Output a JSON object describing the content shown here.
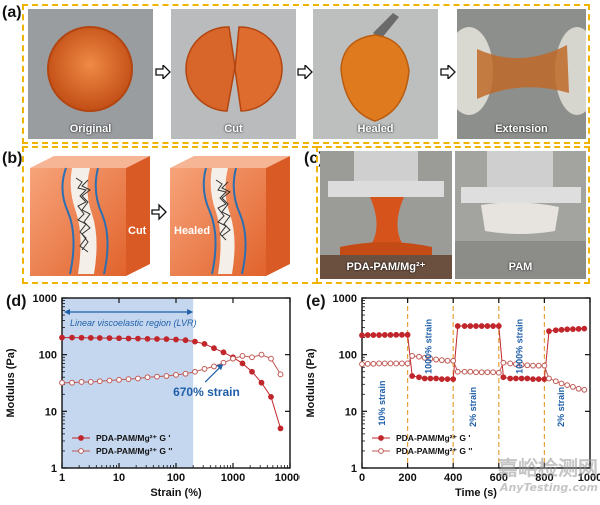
{
  "panels": {
    "a": "(a)",
    "b": "(b)",
    "c": "(c)",
    "d": "(d)",
    "e": "(e)"
  },
  "panel_a": {
    "captions": [
      "Original",
      "Cut",
      "Healed",
      "Extension"
    ]
  },
  "panel_b": {
    "cut_label": "Cut",
    "healed_label": "Healed"
  },
  "panel_c": {
    "left_label": "PDA-PAM/Mg²⁺",
    "right_label": "PAM"
  },
  "watermark": {
    "cn": "嘉峪检测网",
    "en": "AnyTesting.com"
  },
  "colors": {
    "orange": "#e8743b",
    "dash": "#f0b400",
    "lvr": "#c5d7ef",
    "series_dark": "#c0262b",
    "annot": "#1f5fa8",
    "divider": "#e8a33a"
  },
  "chart_data": [
    {
      "type": "line",
      "xscale": "log",
      "yscale": "log",
      "xlim": [
        1,
        10000
      ],
      "ylim": [
        1,
        1000
      ],
      "xlabel": "Strain (%)",
      "ylabel": "Modulus (Pa)",
      "xticks": [
        "1",
        "10",
        "100",
        "1000",
        "10000"
      ],
      "yticks": [
        "1",
        "10",
        "100",
        "1000"
      ],
      "region": {
        "label": "Linear viscoelastic region (LVR)",
        "x_range": [
          1,
          200
        ]
      },
      "annotation": {
        "text": "670% strain",
        "x": 670
      },
      "legend": [
        "PDA-PAM/Mg²⁺ G '",
        "PDA-PAM/Mg²⁺ G ''"
      ],
      "series": [
        {
          "name": "PDA-PAM/Mg²⁺ G '",
          "marker": "filled",
          "x": [
            1,
            1.5,
            2.2,
            3.2,
            4.6,
            6.8,
            10,
            14.7,
            21.5,
            31.6,
            46.4,
            68,
            100,
            147,
            215,
            316,
            464,
            681,
            1000,
            1468,
            2154,
            3162,
            4642,
            6813
          ],
          "y": [
            200,
            200,
            199,
            198,
            197,
            196,
            195,
            193,
            192,
            190,
            189,
            188,
            185,
            180,
            170,
            155,
            130,
            110,
            90,
            70,
            50,
            32,
            18,
            5
          ]
        },
        {
          "name": "PDA-PAM/Mg²⁺ G ''",
          "marker": "open",
          "x": [
            1,
            1.5,
            2.2,
            3.2,
            4.6,
            6.8,
            10,
            14.7,
            21.5,
            31.6,
            46.4,
            68,
            100,
            147,
            215,
            316,
            464,
            681,
            1000,
            1468,
            2154,
            3162,
            4642,
            6813
          ],
          "y": [
            32,
            32,
            33,
            33,
            34,
            35,
            36,
            37,
            38,
            40,
            41,
            42,
            44,
            46,
            50,
            56,
            62,
            72,
            85,
            95,
            90,
            100,
            85,
            45
          ]
        }
      ]
    },
    {
      "type": "line",
      "xscale": "linear",
      "yscale": "log",
      "xlim": [
        0,
        1000
      ],
      "ylim": [
        1,
        1000
      ],
      "xlabel": "Time (s)",
      "ylabel": "Modulus (Pa)",
      "xticks": [
        "0",
        "200",
        "400",
        "600",
        "800",
        "1000"
      ],
      "yticks": [
        "1",
        "10",
        "100",
        "1000"
      ],
      "dividers": [
        200,
        400,
        600,
        800
      ],
      "segment_labels": [
        {
          "text": "10% strain",
          "x": 100,
          "y": 14
        },
        {
          "text": "1000% strain",
          "x": 305,
          "y": 140
        },
        {
          "text": "2% strain",
          "x": 500,
          "y": 12
        },
        {
          "text": "1000% strain",
          "x": 705,
          "y": 140
        },
        {
          "text": "2% strain",
          "x": 885,
          "y": 12
        }
      ],
      "legend": [
        "PDA-PAM/Mg²⁺ G '",
        "PDA-PAM/Mg²⁺ G ''"
      ],
      "series": [
        {
          "name": "PDA-PAM/Mg²⁺ G '",
          "marker": "filled",
          "x": [
            0,
            25,
            50,
            75,
            100,
            125,
            150,
            175,
            200,
            220,
            250,
            275,
            300,
            325,
            350,
            375,
            400,
            420,
            450,
            475,
            500,
            525,
            550,
            575,
            600,
            620,
            650,
            675,
            700,
            725,
            750,
            775,
            800,
            820,
            850,
            875,
            900,
            925,
            950,
            975
          ],
          "y": [
            220,
            222,
            222,
            222,
            223,
            223,
            224,
            224,
            224,
            42,
            40,
            38,
            38,
            38,
            37,
            37,
            37,
            320,
            320,
            320,
            320,
            320,
            320,
            320,
            320,
            40,
            38,
            38,
            38,
            38,
            37,
            37,
            37,
            260,
            270,
            275,
            280,
            282,
            285,
            288
          ]
        },
        {
          "name": "PDA-PAM/Mg²⁺ G ''",
          "marker": "open",
          "x": [
            0,
            25,
            50,
            75,
            100,
            125,
            150,
            175,
            200,
            220,
            250,
            275,
            300,
            325,
            350,
            375,
            400,
            420,
            450,
            475,
            500,
            525,
            550,
            575,
            600,
            620,
            650,
            675,
            700,
            725,
            750,
            775,
            800,
            820,
            850,
            875,
            900,
            925,
            950,
            975
          ],
          "y": [
            68,
            69,
            69,
            70,
            70,
            70,
            70,
            70,
            70,
            95,
            92,
            88,
            85,
            82,
            80,
            78,
            78,
            50,
            50,
            50,
            49,
            49,
            49,
            49,
            48,
            72,
            70,
            68,
            66,
            65,
            64,
            64,
            64,
            38,
            34,
            31,
            29,
            27,
            25,
            24
          ]
        }
      ]
    }
  ]
}
